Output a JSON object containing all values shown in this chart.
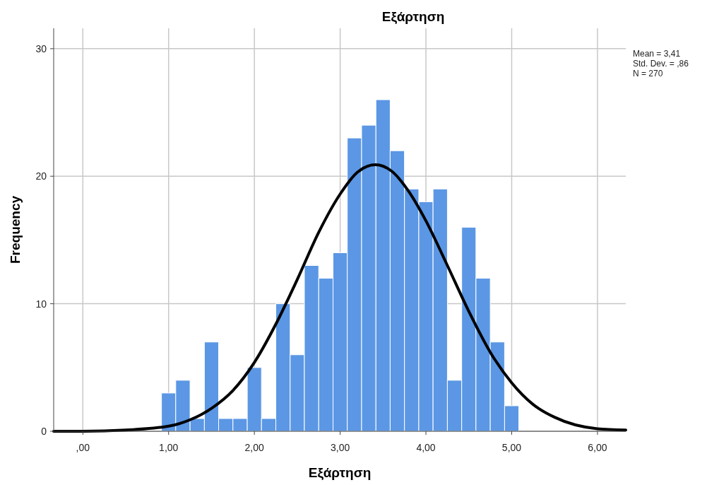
{
  "chart_data": {
    "type": "histogram",
    "title": "Εξάρτηση",
    "xlabel": "Εξάρτηση",
    "ylabel": "Frequency",
    "bins": [
      0.917,
      1.083,
      1.25,
      1.417,
      1.583,
      1.75,
      1.917,
      2.083,
      2.25,
      2.417,
      2.583,
      2.75,
      2.917,
      3.083,
      3.25,
      3.417,
      3.583,
      3.75,
      3.917,
      4.083,
      4.25,
      4.417,
      4.583,
      4.75,
      4.917,
      5.083
    ],
    "series": [
      {
        "color": "#5b97e4",
        "values": [
          3,
          4,
          1,
          7,
          1,
          1,
          5,
          1,
          10,
          6,
          13,
          12,
          14,
          23,
          24,
          26,
          22,
          19,
          18,
          19,
          4,
          16,
          12,
          7,
          2
        ]
      },
      {
        "type": "line",
        "color": "#000000",
        "x": [
          -0.34,
          0,
          0.5,
          1.0,
          1.25,
          1.5,
          1.75,
          2.0,
          2.25,
          2.5,
          2.75,
          3.0,
          3.2,
          3.41,
          3.6,
          3.8,
          4.0,
          4.25,
          4.5,
          4.75,
          5.0,
          5.25,
          5.5,
          6.0,
          6.33
        ],
        "values": [
          0,
          0,
          0.1,
          0.4,
          0.9,
          1.8,
          3.2,
          5.4,
          8.4,
          11.9,
          15.6,
          18.6,
          20.3,
          20.9,
          20.4,
          18.8,
          16.5,
          13.0,
          9.4,
          6.2,
          3.8,
          2.1,
          1.1,
          0.2,
          0.1
        ]
      }
    ],
    "xlim": [
      -0.34,
      6.33
    ],
    "ylim": [
      0,
      31.6
    ],
    "xticks": [
      {
        "value": 0,
        "label": ",00"
      },
      {
        "value": 1,
        "label": "1,00"
      },
      {
        "value": 2,
        "label": "2,00"
      },
      {
        "value": 3,
        "label": "3,00"
      },
      {
        "value": 4,
        "label": "4,00"
      },
      {
        "value": 5,
        "label": "5,00"
      },
      {
        "value": 6,
        "label": "6,00"
      }
    ],
    "yticks": [
      0,
      10,
      20,
      30
    ],
    "grid": true,
    "annotations": [
      "Mean = 3,41",
      "Std. Dev. = ,86",
      "N = 270"
    ]
  }
}
